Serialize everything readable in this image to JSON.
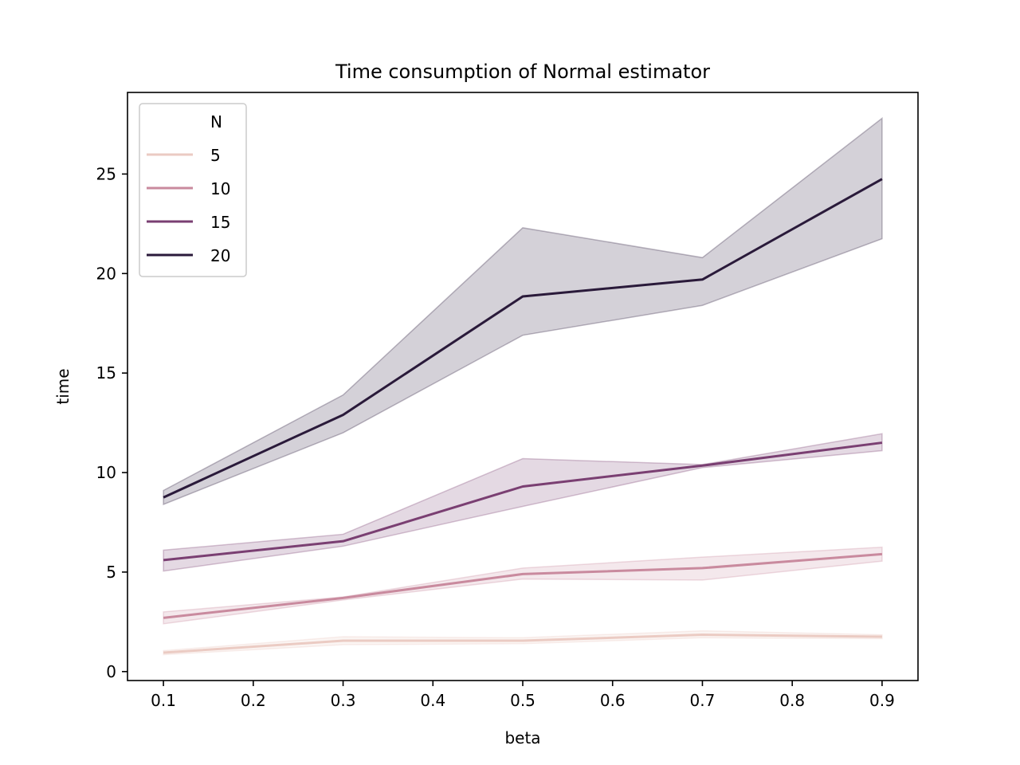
{
  "chart_data": {
    "type": "line",
    "title": "Time consumption of Normal estimator",
    "xlabel": "beta",
    "ylabel": "time",
    "x": [
      0.1,
      0.3,
      0.5,
      0.7,
      0.9
    ],
    "xlim": [
      0.06,
      0.94
    ],
    "ylim": [
      -0.45,
      29.1
    ],
    "xticks": [
      "0.1",
      "0.2",
      "0.3",
      "0.4",
      "0.5",
      "0.6",
      "0.7",
      "0.8",
      "0.9"
    ],
    "yticks": [
      "0",
      "5",
      "10",
      "15",
      "20",
      "25"
    ],
    "grid": false,
    "legend": {
      "title": "N",
      "placement": "top-left"
    },
    "series": [
      {
        "name": "5",
        "color": "#ebcbc3",
        "values": [
          0.95,
          1.55,
          1.55,
          1.85,
          1.75
        ],
        "ci_lower": [
          0.85,
          1.35,
          1.4,
          1.7,
          1.65
        ],
        "ci_upper": [
          1.05,
          1.75,
          1.7,
          2.05,
          1.85
        ]
      },
      {
        "name": "10",
        "color": "#c98a9e",
        "values": [
          2.7,
          3.7,
          4.9,
          5.2,
          5.9
        ],
        "ci_lower": [
          2.4,
          3.6,
          4.65,
          4.6,
          5.55
        ],
        "ci_upper": [
          3.0,
          3.75,
          5.2,
          5.75,
          6.25
        ]
      },
      {
        "name": "15",
        "color": "#7a3f72",
        "values": [
          5.6,
          6.55,
          9.3,
          10.35,
          11.5
        ],
        "ci_lower": [
          5.05,
          6.3,
          8.3,
          10.25,
          11.1
        ],
        "ci_upper": [
          6.1,
          6.9,
          10.7,
          10.4,
          11.95
        ]
      },
      {
        "name": "20",
        "color": "#2a1a3a",
        "values": [
          8.75,
          12.9,
          18.85,
          19.7,
          24.75
        ],
        "ci_lower": [
          8.4,
          12.0,
          16.9,
          18.4,
          21.75
        ],
        "ci_upper": [
          9.1,
          13.9,
          22.3,
          20.8,
          27.8
        ]
      }
    ]
  }
}
